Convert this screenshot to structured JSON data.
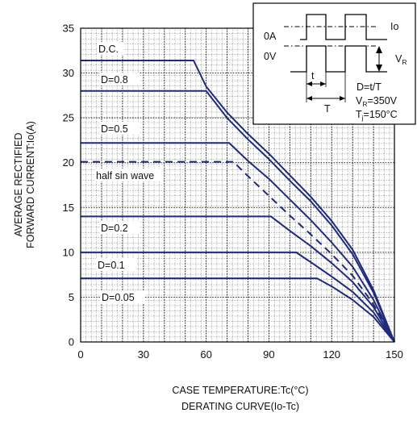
{
  "chart_data": {
    "type": "line",
    "title": "",
    "caption_lines": [
      "CASE TEMPERATURE:Tc(°C)",
      "DERATING CURVE(Io-Tc)"
    ],
    "ylabel_lines": [
      "AVERAGE RECTIFIED",
      "FORWARD CURRENT:Io(A)"
    ],
    "xlim": [
      0,
      150
    ],
    "ylim": [
      0,
      35
    ],
    "xticks": [
      "0",
      "30",
      "60",
      "90",
      "120",
      "150"
    ],
    "yticks": [
      "0",
      "5",
      "10",
      "15",
      "20",
      "25",
      "30",
      "35"
    ],
    "grid": true,
    "series": [
      {
        "name": "D.C.",
        "style": "solid",
        "x": [
          0,
          54,
          60,
          70,
          80,
          90,
          100,
          110,
          120,
          130,
          140,
          150
        ],
        "y": [
          31.4,
          31.4,
          28.5,
          25.6,
          23.2,
          21.0,
          18.6,
          16.2,
          13.5,
          10.3,
          5.8,
          0
        ]
      },
      {
        "name": "D=0.8",
        "style": "solid",
        "x": [
          0,
          60,
          70,
          80,
          90,
          100,
          110,
          120,
          130,
          140,
          150
        ],
        "y": [
          28.0,
          28.0,
          25.0,
          22.6,
          20.4,
          18.0,
          15.7,
          13.0,
          9.8,
          5.5,
          0
        ]
      },
      {
        "name": "D=0.5",
        "style": "solid",
        "x": [
          0,
          71,
          80,
          90,
          100,
          110,
          120,
          130,
          140,
          150
        ],
        "y": [
          22.2,
          22.2,
          20.2,
          18.2,
          15.9,
          13.6,
          11.1,
          8.4,
          4.7,
          0
        ]
      },
      {
        "name": "half sin wave",
        "style": "dashed",
        "x": [
          0,
          73,
          80,
          90,
          100,
          110,
          120,
          130,
          140,
          150
        ],
        "y": [
          20.1,
          20.1,
          18.5,
          16.3,
          14.1,
          12.0,
          9.8,
          7.4,
          4.2,
          0
        ]
      },
      {
        "name": "D=0.2",
        "style": "solid",
        "x": [
          0,
          91,
          100,
          110,
          120,
          130,
          140,
          150
        ],
        "y": [
          14.0,
          14.0,
          12.4,
          10.7,
          8.8,
          6.7,
          3.9,
          0
        ]
      },
      {
        "name": "D=0.1",
        "style": "solid",
        "x": [
          0,
          103,
          110,
          120,
          130,
          140,
          150
        ],
        "y": [
          10.0,
          10.0,
          8.9,
          7.3,
          5.6,
          3.3,
          0
        ]
      },
      {
        "name": "D=0.05",
        "style": "solid",
        "x": [
          0,
          113,
          120,
          130,
          140,
          150
        ],
        "y": [
          7.1,
          7.1,
          6.2,
          4.7,
          2.8,
          0
        ]
      }
    ],
    "inset": {
      "labels": {
        "zero_amp": "0A",
        "zero_volt": "0V",
        "io": "Io",
        "vr": "V",
        "vr_sub": "R",
        "t_small": "t",
        "t_big": "T",
        "duty": "D=t/T",
        "vr_line_a": "V",
        "vr_line_a_sub": "R",
        "vr_line_b": "=350V",
        "tj_a": "T",
        "tj_a_sub": "j",
        "tj_b": "=150°C"
      },
      "placement": "top-right"
    },
    "colors": {
      "curve": "#1f2a7a",
      "grid": "#1a1a1a",
      "frame": "#000000"
    }
  }
}
